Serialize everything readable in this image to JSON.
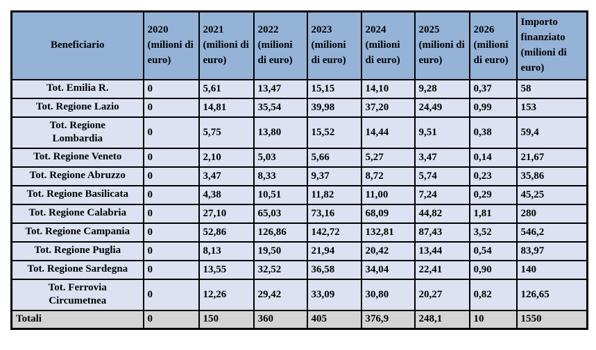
{
  "table": {
    "columns": [
      "Beneficiario",
      "2020 (milioni di euro)",
      "2021 (milioni di euro)",
      "2022 (milioni di euro)",
      "2023 (milioni di euro)",
      "2024 (milioni di euro)",
      "2025 (milioni di euro)",
      "2026 (milioni di euro)",
      "Importo finanziato (milioni di euro)"
    ],
    "rows": [
      {
        "label": "Tot. Emilia R.",
        "values": [
          "0",
          "5,61",
          "13,47",
          "15,15",
          "14,10",
          "9,28",
          "0,37",
          "58"
        ],
        "total": false
      },
      {
        "label": "Tot. Regione Lazio",
        "values": [
          "0",
          "14,81",
          "35,54",
          "39,98",
          "37,20",
          "24,49",
          "0,99",
          "153"
        ],
        "total": false
      },
      {
        "label": "Tot. Regione\nLombardia",
        "values": [
          "0",
          "5,75",
          "13,80",
          "15,52",
          "14,44",
          "9,51",
          "0,38",
          "59,4"
        ],
        "total": false
      },
      {
        "label": "Tot. Regione Veneto",
        "values": [
          "0",
          "2,10",
          "5,03",
          "5,66",
          "5,27",
          "3,47",
          "0,14",
          "21,67"
        ],
        "total": false
      },
      {
        "label": "Tot. Regione Abruzzo",
        "values": [
          "0",
          "3,47",
          "8,33",
          "9,37",
          "8,72",
          "5,74",
          "0,23",
          "35,86"
        ],
        "total": false
      },
      {
        "label": "Tot. Regione Basilicata",
        "values": [
          "0",
          "4,38",
          "10,51",
          "11,82",
          "11,00",
          "7,24",
          "0,29",
          "45,25"
        ],
        "total": false
      },
      {
        "label": "Tot. Regione Calabria",
        "values": [
          "0",
          "27,10",
          "65,03",
          "73,16",
          "68,09",
          "44,82",
          "1,81",
          "280"
        ],
        "total": false
      },
      {
        "label": "Tot. Regione Campania",
        "values": [
          "0",
          "52,86",
          "126,86",
          "142,72",
          "132,81",
          "87,43",
          "3,52",
          "546,2"
        ],
        "total": false
      },
      {
        "label": "Tot. Regione Puglia",
        "values": [
          "0",
          "8,13",
          "19,50",
          "21,94",
          "20,42",
          "13,44",
          "0,54",
          "83,97"
        ],
        "total": false
      },
      {
        "label": "Tot. Regione Sardegna",
        "values": [
          "0",
          "13,55",
          "32,52",
          "36,58",
          "34,04",
          "22,41",
          "0,90",
          "140"
        ],
        "total": false
      },
      {
        "label": "Tot. Ferrovia\nCircumetnea",
        "values": [
          "0",
          "12,26",
          "29,42",
          "33,09",
          "30,80",
          "20,27",
          "0,82",
          "126,65"
        ],
        "total": false
      },
      {
        "label": "Totali",
        "values": [
          "0",
          "150",
          "360",
          "405",
          "376,9",
          "248,1",
          "10",
          "1550"
        ],
        "total": true
      }
    ],
    "colors": {
      "header_bg": "#95B3D7",
      "row_bg": "#DCE2F1",
      "total_bg": "#D4D4D4",
      "border": "#000000",
      "text": "#000000"
    }
  }
}
